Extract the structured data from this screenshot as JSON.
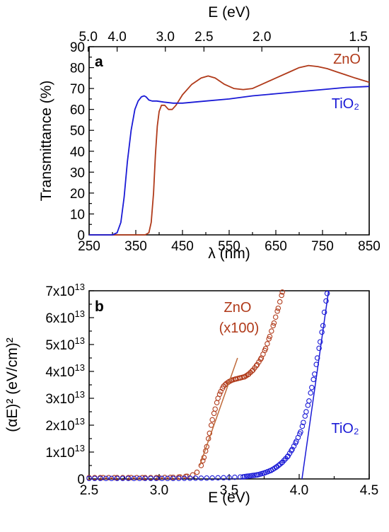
{
  "colors": {
    "zno": "#b03a1a",
    "tio2": "#1a1ad6",
    "axis": "#000000"
  },
  "chart_data": [
    {
      "panel": "a",
      "type": "line",
      "xlabel": "λ (nm)",
      "ylabel": "Transmittance (%)",
      "top_xlabel": "E (eV)",
      "xlim": [
        250,
        850
      ],
      "ylim": [
        0,
        90
      ],
      "x_ticks": [
        "250",
        "350",
        "450",
        "550",
        "650",
        "750",
        "850"
      ],
      "y_ticks": [
        "0",
        "10",
        "20",
        "30",
        "40",
        "50",
        "60",
        "70",
        "80",
        "90"
      ],
      "top_ticks": [
        "5.0",
        "4.0",
        "3.0",
        "2.5",
        "2.0",
        "1.5"
      ],
      "series": [
        {
          "name": "ZnO",
          "points": [
            [
              250,
              0
            ],
            [
              370,
              0
            ],
            [
              378,
              1
            ],
            [
              383,
              6
            ],
            [
              388,
              20
            ],
            [
              392,
              38
            ],
            [
              396,
              52
            ],
            [
              400,
              59
            ],
            [
              405,
              62
            ],
            [
              412,
              62
            ],
            [
              420,
              60
            ],
            [
              428,
              60
            ],
            [
              436,
              62
            ],
            [
              450,
              67
            ],
            [
              470,
              72
            ],
            [
              490,
              75
            ],
            [
              505,
              76
            ],
            [
              520,
              75
            ],
            [
              540,
              72
            ],
            [
              560,
              70
            ],
            [
              580,
              69.5
            ],
            [
              600,
              70
            ],
            [
              620,
              72
            ],
            [
              650,
              75
            ],
            [
              680,
              78
            ],
            [
              700,
              80
            ],
            [
              720,
              81
            ],
            [
              740,
              80.5
            ],
            [
              760,
              79.5
            ],
            [
              780,
              78
            ],
            [
              800,
              76.5
            ],
            [
              820,
              75
            ],
            [
              850,
              73
            ]
          ]
        },
        {
          "name": "TiO₂",
          "points": [
            [
              250,
              0
            ],
            [
              300,
              0
            ],
            [
              310,
              1
            ],
            [
              318,
              6
            ],
            [
              325,
              18
            ],
            [
              332,
              35
            ],
            [
              340,
              50
            ],
            [
              348,
              60
            ],
            [
              355,
              64
            ],
            [
              362,
              66
            ],
            [
              368,
              66.5
            ],
            [
              372,
              66
            ],
            [
              378,
              64.5
            ],
            [
              385,
              64
            ],
            [
              395,
              64
            ],
            [
              410,
              63.5
            ],
            [
              430,
              63
            ],
            [
              450,
              63
            ],
            [
              500,
              64
            ],
            [
              550,
              65
            ],
            [
              600,
              66.5
            ],
            [
              650,
              67.5
            ],
            [
              700,
              68.5
            ],
            [
              750,
              69.5
            ],
            [
              800,
              70.5
            ],
            [
              850,
              71
            ]
          ]
        }
      ]
    },
    {
      "panel": "b",
      "type": "scatter",
      "xlabel": "E (eV)",
      "ylabel": "(αE)² (eV/cm)²",
      "xlim": [
        2.5,
        4.5
      ],
      "ylim": [
        0,
        7
      ],
      "y_unit": "1e13",
      "x_ticks": [
        "2.5",
        "3.0",
        "3.5",
        "4.0",
        "4.5"
      ],
      "y_ticks": [
        "0",
        "1x10",
        "2x10",
        "3x10",
        "4x10",
        "5x10",
        "6x10",
        "7x10"
      ],
      "y_tick_exp": "13",
      "series": [
        {
          "name": "ZnO (x100)",
          "label_line1": "ZnO",
          "label_line2": "(x100)",
          "points": [
            [
              2.5,
              0.05
            ],
            [
              2.6,
              0.05
            ],
            [
              2.7,
              0.05
            ],
            [
              2.8,
              0.05
            ],
            [
              2.9,
              0.05
            ],
            [
              3.0,
              0.05
            ],
            [
              3.1,
              0.06
            ],
            [
              3.15,
              0.07
            ],
            [
              3.2,
              0.1
            ],
            [
              3.24,
              0.15
            ],
            [
              3.27,
              0.25
            ],
            [
              3.3,
              0.5
            ],
            [
              3.32,
              0.8
            ],
            [
              3.34,
              1.2
            ],
            [
              3.36,
              1.7
            ],
            [
              3.38,
              2.2
            ],
            [
              3.4,
              2.6
            ],
            [
              3.42,
              3.0
            ],
            [
              3.44,
              3.25
            ],
            [
              3.46,
              3.45
            ],
            [
              3.48,
              3.55
            ],
            [
              3.5,
              3.62
            ],
            [
              3.52,
              3.68
            ],
            [
              3.55,
              3.72
            ],
            [
              3.58,
              3.76
            ],
            [
              3.61,
              3.8
            ],
            [
              3.64,
              3.9
            ],
            [
              3.67,
              4.05
            ],
            [
              3.7,
              4.25
            ],
            [
              3.73,
              4.5
            ],
            [
              3.76,
              4.85
            ],
            [
              3.79,
              5.3
            ],
            [
              3.82,
              5.8
            ],
            [
              3.85,
              6.35
            ],
            [
              3.88,
              6.95
            ]
          ],
          "fit": [
            [
              3.29,
              0.5
            ],
            [
              3.56,
              4.5
            ]
          ]
        },
        {
          "name": "TiO₂",
          "points": [
            [
              2.5,
              0.02
            ],
            [
              2.7,
              0.02
            ],
            [
              2.9,
              0.02
            ],
            [
              3.1,
              0.02
            ],
            [
              3.3,
              0.03
            ],
            [
              3.5,
              0.05
            ],
            [
              3.6,
              0.08
            ],
            [
              3.7,
              0.15
            ],
            [
              3.75,
              0.22
            ],
            [
              3.8,
              0.32
            ],
            [
              3.84,
              0.45
            ],
            [
              3.88,
              0.62
            ],
            [
              3.92,
              0.85
            ],
            [
              3.95,
              1.1
            ],
            [
              3.98,
              1.4
            ],
            [
              4.01,
              1.75
            ],
            [
              4.03,
              2.1
            ],
            [
              4.05,
              2.5
            ],
            [
              4.07,
              2.9
            ],
            [
              4.09,
              3.4
            ],
            [
              4.11,
              3.9
            ],
            [
              4.13,
              4.5
            ],
            [
              4.15,
              5.1
            ],
            [
              4.17,
              5.7
            ],
            [
              4.18,
              6.2
            ],
            [
              4.2,
              6.9
            ]
          ],
          "fit": [
            [
              4.02,
              0.0
            ],
            [
              4.21,
              7.0
            ]
          ]
        }
      ]
    }
  ]
}
